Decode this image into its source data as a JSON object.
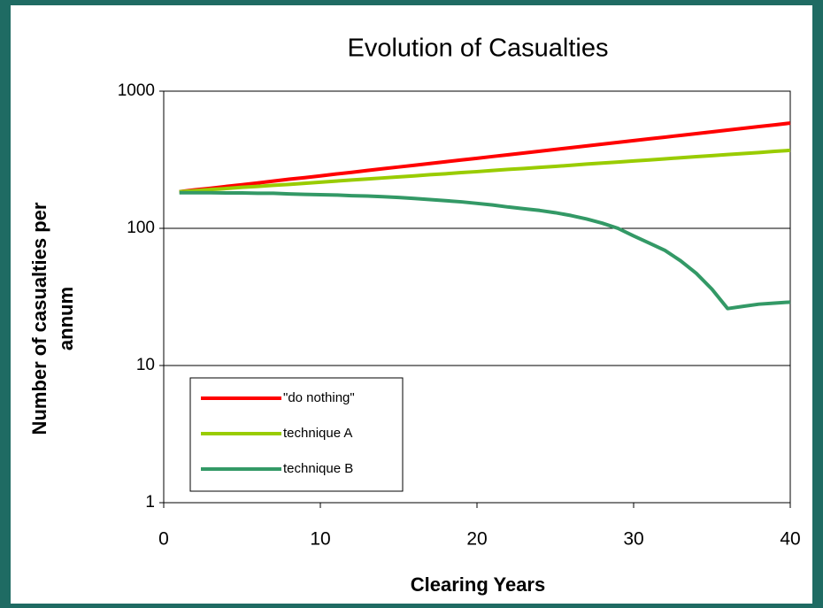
{
  "chart_data": {
    "type": "line",
    "title": "Evolution of Casualties",
    "xlabel": "Clearing Years",
    "ylabel": "Number of casualties per annum",
    "x": [
      1,
      2,
      3,
      4,
      5,
      6,
      7,
      8,
      9,
      10,
      11,
      12,
      13,
      14,
      15,
      16,
      17,
      18,
      19,
      20,
      21,
      22,
      23,
      24,
      25,
      26,
      27,
      28,
      29,
      30,
      31,
      32,
      33,
      34,
      35,
      36,
      37,
      38,
      39,
      40
    ],
    "series": [
      {
        "name": "\"do nothing\"",
        "color": "#ff0000",
        "values": [
          185,
          191,
          196,
          202,
          208,
          214,
          221,
          228,
          234,
          241,
          249,
          256,
          264,
          272,
          280,
          288,
          297,
          306,
          315,
          324,
          334,
          344,
          354,
          365,
          376,
          387,
          399,
          411,
          423,
          436,
          449,
          462,
          476,
          490,
          505,
          520,
          536,
          552,
          568,
          585
        ]
      },
      {
        "name": "technique A",
        "color": "#99cc00",
        "values": [
          185,
          188,
          192,
          195,
          199,
          202,
          206,
          209,
          213,
          217,
          221,
          225,
          229,
          233,
          237,
          241,
          246,
          250,
          255,
          259,
          264,
          269,
          273,
          278,
          283,
          288,
          294,
          299,
          304,
          310,
          315,
          321,
          327,
          333,
          339,
          345,
          351,
          357,
          364,
          370
        ]
      },
      {
        "name": "technique B",
        "color": "#339966",
        "values": [
          182,
          182,
          182,
          181,
          181,
          180,
          180,
          178,
          177,
          176,
          175,
          173,
          172,
          170,
          168,
          165,
          162,
          159,
          156,
          152,
          148,
          143,
          139,
          135,
          130,
          124,
          117,
          109,
          100,
          88,
          78,
          69,
          58,
          47,
          36,
          26,
          27,
          28,
          28.5,
          29
        ]
      }
    ],
    "xlim": [
      0,
      40
    ],
    "xticks": [
      0,
      10,
      20,
      30,
      40
    ],
    "ylim": [
      1,
      1000
    ],
    "yticks": [
      1,
      10,
      100,
      1000
    ],
    "log_y": true,
    "grid": true,
    "legend": "lower left"
  }
}
